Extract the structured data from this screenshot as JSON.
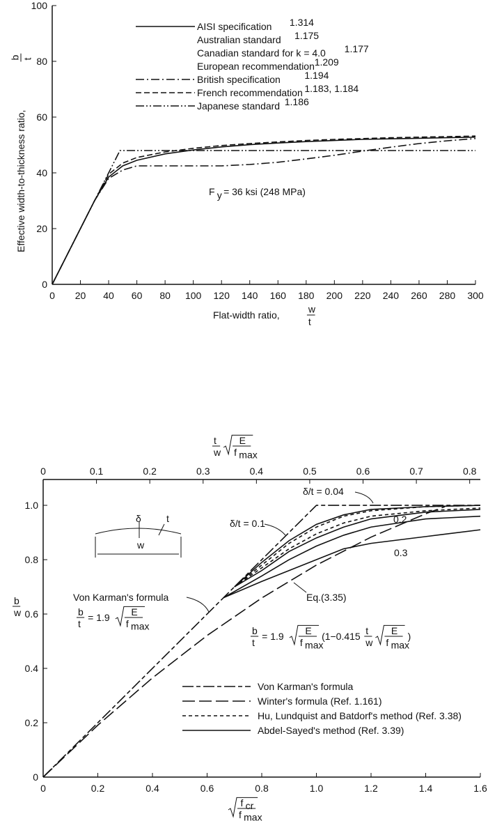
{
  "chart_data": [
    {
      "type": "line",
      "xlabel": [
        "Flat-width ratio,",
        {
          "num": "w",
          "den": "t"
        }
      ],
      "ylabel": [
        "Effective width-to-thickness ratio,",
        {
          "num": "b",
          "den": "t"
        }
      ],
      "xlim": [
        0,
        300
      ],
      "xticks": [
        0,
        20,
        40,
        60,
        80,
        100,
        120,
        140,
        160,
        180,
        200,
        220,
        240,
        260,
        280,
        300
      ],
      "ylim": [
        0,
        100
      ],
      "yticks": [
        0,
        20,
        40,
        60,
        80,
        100
      ],
      "legend": "upper center",
      "annotation": [
        "F",
        {
          "sub": "y"
        },
        "= 36 ksi (248 MPa)"
      ],
      "series": [
        {
          "name": "AISI specification",
          "ref": "1.314",
          "style": "solid",
          "color": "#111",
          "also": [
            {
              "name": "Australian standard",
              "ref": "1.175"
            },
            {
              "name": "Canadian standard for k = 4.0",
              "ref": "1.177"
            },
            {
              "name": "European recommendation",
              "ref": "1.209"
            }
          ],
          "x": [
            0,
            30,
            40,
            50,
            60,
            80,
            100,
            120,
            140,
            160,
            180,
            200,
            220,
            240,
            260,
            280,
            300
          ],
          "values": [
            0,
            30,
            38.5,
            42.5,
            44.5,
            46.8,
            48.2,
            49.3,
            50.1,
            50.7,
            51.2,
            51.6,
            52,
            52.2,
            52.4,
            52.6,
            52.8
          ]
        },
        {
          "name": "British specification",
          "ref": "1.194",
          "style": "dash-dot",
          "color": "#111",
          "x": [
            0,
            30,
            40,
            50,
            60,
            80,
            100,
            120,
            140,
            160,
            180,
            200,
            220,
            240,
            260,
            280,
            300
          ],
          "values": [
            0,
            30,
            38,
            41,
            42.5,
            42.5,
            42.5,
            42.5,
            43,
            43.8,
            45,
            46.3,
            47.8,
            49.2,
            50.5,
            51.5,
            52.3
          ]
        },
        {
          "name": "French recommendation",
          "ref": "1.183, 1.184",
          "style": "dashed",
          "color": "#111",
          "x": [
            0,
            30,
            40,
            50,
            60,
            80,
            100,
            120,
            140,
            160,
            180,
            200,
            220,
            240,
            260,
            280,
            300
          ],
          "values": [
            0,
            30,
            39.5,
            43.5,
            45.5,
            47.5,
            48.8,
            49.8,
            50.5,
            51.1,
            51.6,
            52,
            52.3,
            52.6,
            52.8,
            53,
            53.2
          ]
        },
        {
          "name": "Japanese standard",
          "ref": "1.186",
          "style": "dash-dot-dot",
          "color": "#111",
          "x": [
            0,
            48,
            300
          ],
          "values": [
            0,
            48,
            48
          ]
        }
      ]
    },
    {
      "type": "line",
      "xlabel": [
        {
          "sqrt": {
            "num": "f",
            "num_sub": "cr",
            "den": "f",
            "den_sub": "max"
          }
        }
      ],
      "x2label": [
        {
          "num": "t",
          "den": "w"
        },
        {
          "sqrt": {
            "num": "E",
            "den": "f",
            "den_sub": "max"
          }
        }
      ],
      "ylabel": [
        {
          "num": "b",
          "den": "w"
        }
      ],
      "xlim": [
        0,
        1.6
      ],
      "xticks": [
        0,
        0.2,
        0.4,
        0.6,
        0.8,
        {
          "value": 1,
          "label": "1.0"
        },
        1.2,
        1.4,
        1.6
      ],
      "x2lim": [
        0,
        0.82
      ],
      "x2ticks": [
        0,
        0.1,
        0.2,
        0.3,
        0.4,
        0.5,
        0.6,
        0.7,
        0.8
      ],
      "ylim": [
        0,
        1.095
      ],
      "yticks": [
        0,
        0.2,
        0.4,
        0.6,
        0.8,
        {
          "value": 1,
          "label": "1.0"
        }
      ],
      "legend": "lower right",
      "curve_labels": [
        "δ/t = 0.04",
        "δ/t = 0.1",
        "0.2",
        "0.3"
      ],
      "annotations": [
        [
          "Von Karman's formula"
        ],
        [
          {
            "num": "b",
            "den": "t"
          },
          "= 1.9",
          {
            "sqrt": {
              "num": "E",
              "den": "f",
              "den_sub": "max"
            }
          }
        ],
        [
          "Eq.(3.35)"
        ],
        [
          {
            "num": "b",
            "den": "t"
          },
          "= 1.9",
          {
            "sqrt": {
              "num": "E",
              "den": "f",
              "den_sub": "max"
            }
          },
          "(1−0.415",
          {
            "num": "t",
            "den": "w"
          },
          {
            "sqrt": {
              "num": "E",
              "den": "f",
              "den_sub": "max"
            }
          },
          ")"
        ]
      ],
      "inset_labels": [
        "δ",
        "t",
        "w"
      ],
      "series": [
        {
          "name": "Von Karman's formula",
          "style": "long-short",
          "color": "#111",
          "x": [
            0,
            1,
            1.6
          ],
          "values": [
            0,
            1,
            1
          ]
        },
        {
          "name": "Winter's formula (Ref. 1.161)",
          "style": "long-dash",
          "color": "#111",
          "x": [
            0,
            0.2,
            0.4,
            0.6,
            0.8,
            1,
            1.2,
            1.4,
            1.47
          ],
          "values": [
            0,
            0.191,
            0.365,
            0.521,
            0.659,
            0.78,
            0.883,
            0.969,
            0.995
          ]
        },
        {
          "name": "Hu, Lundquist and Batdorf's method (Ref. 3.38)",
          "style": "short-dash",
          "color": "#111",
          "x": [
            0.7,
            0.8,
            0.9,
            1,
            1.1,
            1.2,
            1.4,
            1.6
          ],
          "values": [
            0.7,
            0.78,
            0.86,
            0.92,
            0.96,
            0.98,
            0.995,
            1
          ]
        },
        {
          "name": "Hu, Lundquist and Batdorf's method (Ref. 3.38)",
          "style": "short-dash",
          "color": "#111",
          "x": [
            0.7,
            0.8,
            0.9,
            1,
            1.1,
            1.2,
            1.4,
            1.6
          ],
          "values": [
            0.7,
            0.77,
            0.84,
            0.895,
            0.935,
            0.96,
            0.98,
            0.99
          ]
        },
        {
          "name": "Abdel-Sayed's method (Ref. 3.39)",
          "style": "solid",
          "color": "#111",
          "x": [
            0.7,
            0.8,
            0.9,
            1,
            1.1,
            1.2,
            1.4,
            1.6
          ],
          "values": [
            0.7,
            0.79,
            0.87,
            0.93,
            0.965,
            0.985,
            0.995,
            1
          ]
        },
        {
          "name": "Abdel-Sayed's method (Ref. 3.39)",
          "style": "solid",
          "color": "#111",
          "x": [
            0.7,
            0.8,
            0.9,
            1,
            1.1,
            1.2,
            1.4,
            1.6
          ],
          "values": [
            0.7,
            0.76,
            0.83,
            0.88,
            0.92,
            0.95,
            0.975,
            0.985
          ]
        },
        {
          "name": "Abdel-Sayed's method (Ref. 3.39)",
          "style": "solid",
          "color": "#111",
          "x": [
            0.66,
            0.8,
            0.9,
            1,
            1.1,
            1.2,
            1.4,
            1.6
          ],
          "values": [
            0.66,
            0.74,
            0.8,
            0.85,
            0.89,
            0.92,
            0.95,
            0.96
          ]
        },
        {
          "name": "Abdel-Sayed's method (Ref. 3.39)",
          "style": "solid",
          "color": "#111",
          "x": [
            0.66,
            0.8,
            0.9,
            1,
            1.1,
            1.2,
            1.4,
            1.6
          ],
          "values": [
            0.66,
            0.72,
            0.76,
            0.8,
            0.84,
            0.86,
            0.885,
            0.91
          ]
        }
      ]
    }
  ]
}
